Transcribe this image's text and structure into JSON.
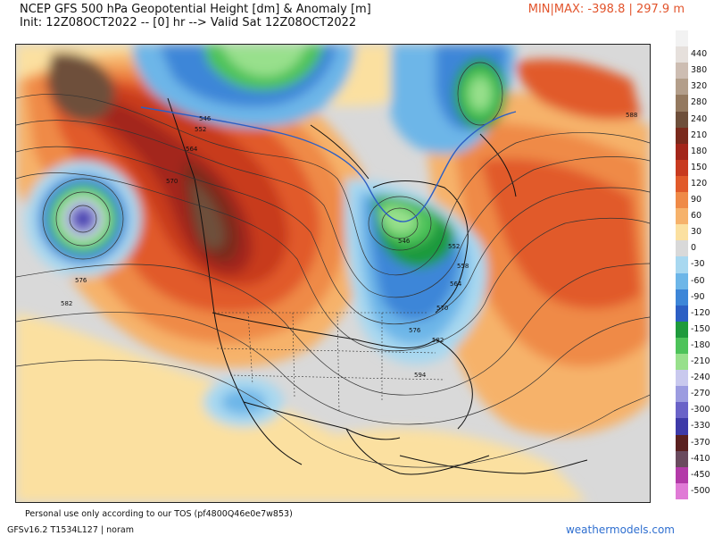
{
  "header": {
    "title_line1": "NCEP GFS 500 hPa Geopotential Height [dm] & Anomaly [m]",
    "title_line2": "Init: 12Z08OCT2022 -- [0] hr --> Valid Sat 12Z08OCT2022",
    "minmax": "MIN|MAX: -398.8 | 297.9 m"
  },
  "colorbar": {
    "entries": [
      {
        "label": "",
        "color": "#f2f2f2"
      },
      {
        "label": "440",
        "color": "#e6e0dc"
      },
      {
        "label": "380",
        "color": "#cdbdb2"
      },
      {
        "label": "320",
        "color": "#b39e8a"
      },
      {
        "label": "280",
        "color": "#94795f"
      },
      {
        "label": "240",
        "color": "#6e4f3a"
      },
      {
        "label": "210",
        "color": "#7a2a1c"
      },
      {
        "label": "180",
        "color": "#a3261a"
      },
      {
        "label": "150",
        "color": "#c83a1f"
      },
      {
        "label": "120",
        "color": "#e15a2a"
      },
      {
        "label": "90",
        "color": "#ef8a47"
      },
      {
        "label": "60",
        "color": "#f6b26b"
      },
      {
        "label": "30",
        "color": "#fbe0a0"
      },
      {
        "label": "0",
        "color": "#d9d9d9"
      },
      {
        "label": "-30",
        "color": "#a8d8f0"
      },
      {
        "label": "-60",
        "color": "#6db6e8"
      },
      {
        "label": "-90",
        "color": "#3d86d8"
      },
      {
        "label": "-120",
        "color": "#2c5fc4"
      },
      {
        "label": "-150",
        "color": "#1e9a3c"
      },
      {
        "label": "-180",
        "color": "#4dc35a"
      },
      {
        "label": "-210",
        "color": "#98e08c"
      },
      {
        "label": "-240",
        "color": "#c9c9ee"
      },
      {
        "label": "-270",
        "color": "#9c9ce0"
      },
      {
        "label": "-300",
        "color": "#6a63c8"
      },
      {
        "label": "-330",
        "color": "#3e3aa8"
      },
      {
        "label": "-370",
        "color": "#5a2020"
      },
      {
        "label": "-410",
        "color": "#6a4a5e"
      },
      {
        "label": "-450",
        "color": "#b33aa8"
      },
      {
        "label": "-500",
        "color": "#e07ad6"
      }
    ]
  },
  "map": {
    "contour_labels": [
      "546",
      "552",
      "564",
      "570",
      "576",
      "582",
      "588",
      "594",
      "546",
      "552",
      "558",
      "564",
      "570",
      "576",
      "582"
    ]
  },
  "footer": {
    "tos": "Personal use only according to our TOS (pf4800Q46e0e7w853)",
    "model_info": "GFSv16.2 T1534L127 | noram",
    "brand": "weathermodels.com"
  }
}
